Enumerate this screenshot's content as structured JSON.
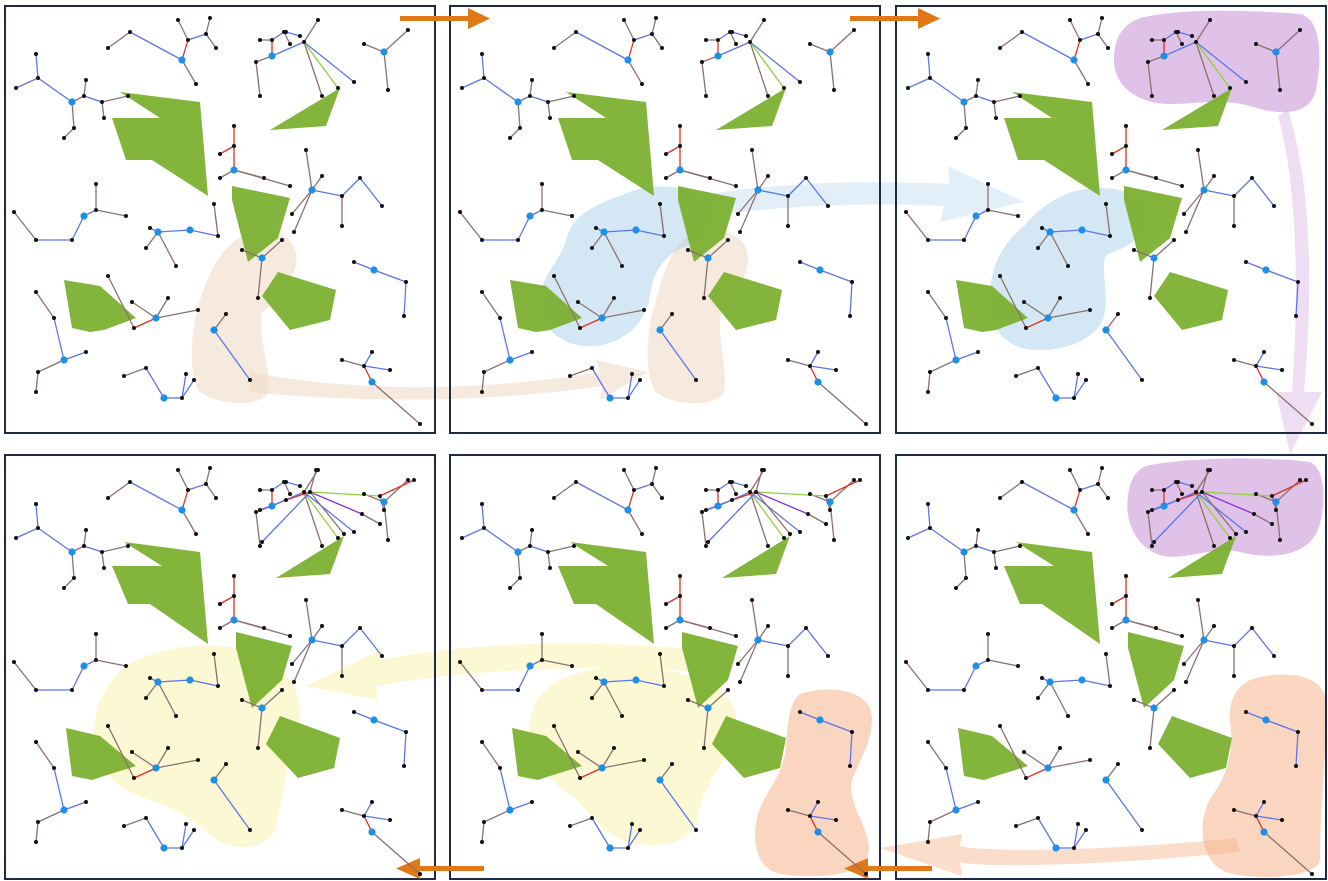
{
  "figure": {
    "layout": "2x3 panel grid",
    "panel_count": 6,
    "flow_order": [
      "top-left",
      "top-middle",
      "top-right",
      "bottom-right",
      "bottom-middle",
      "bottom-left"
    ]
  },
  "colors": {
    "panel_border": "#1f2a44",
    "obstacle": "#7cb032",
    "edge_blue": "#5b76ea",
    "edge_brown": "#8c7070",
    "edge_red": "#e0301e",
    "edge_green": "#8fd03a",
    "edge_purple": "#8a2fd6",
    "node_black": "#111111",
    "root_node": "#1e8fe6",
    "flow_arrow": "#e07818",
    "highlight_beige": "#efd9c4",
    "highlight_blue": "#9ecbe7",
    "highlight_purple": "#c78fd6",
    "highlight_yellow": "#fbf6c6",
    "highlight_salmon": "#f6b48c"
  },
  "panels": [
    {
      "id": "p1",
      "highlights": [
        "beige"
      ]
    },
    {
      "id": "p2",
      "highlights": [
        "blue",
        "beige"
      ]
    },
    {
      "id": "p3",
      "highlights": [
        "purple",
        "blue"
      ]
    },
    {
      "id": "p4",
      "highlights": [
        "yellow"
      ]
    },
    {
      "id": "p5",
      "highlights": [
        "yellow",
        "salmon"
      ]
    },
    {
      "id": "p6",
      "highlights": [
        "purple",
        "salmon"
      ]
    }
  ],
  "icons": {
    "flow_arrow": "right-arrow-icon"
  }
}
